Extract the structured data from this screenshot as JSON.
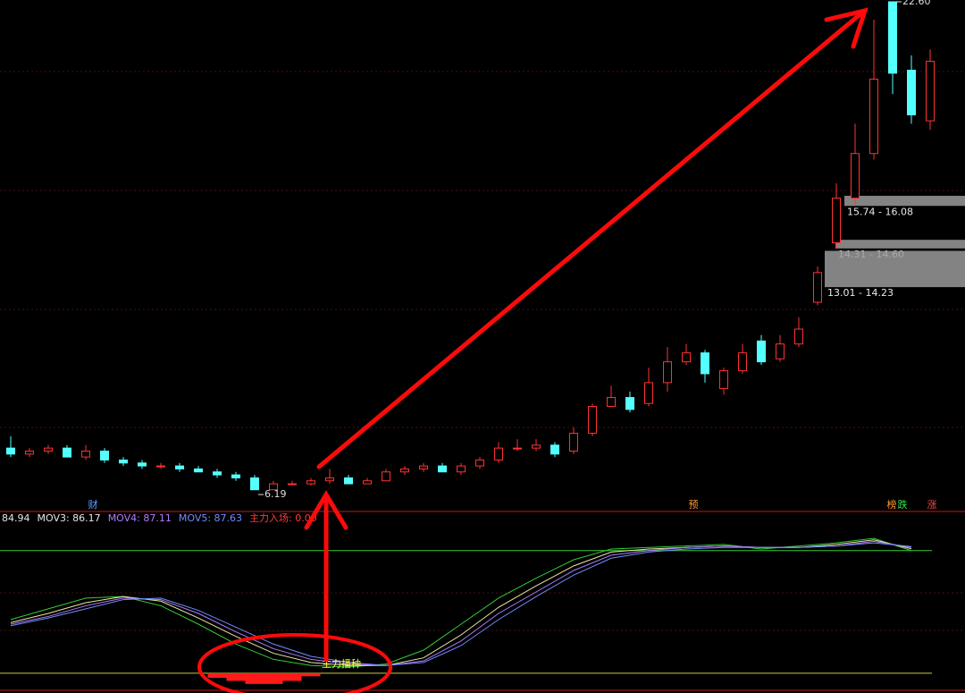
{
  "chart_data": [
    {
      "type": "candlestick",
      "up_color": "#ff3232",
      "down_color": "#54ffff",
      "open": [
        7.6,
        7.4,
        7.5,
        7.6,
        7.3,
        7.5,
        7.2,
        7.1,
        7.0,
        7.0,
        6.9,
        6.8,
        6.7,
        6.6,
        6.2,
        6.4,
        6.4,
        6.5,
        6.6,
        6.4,
        6.5,
        6.8,
        6.9,
        7.0,
        6.8,
        7.0,
        7.2,
        7.6,
        7.6,
        7.7,
        7.5,
        8.1,
        9.0,
        9.3,
        9.1,
        9.8,
        10.5,
        10.8,
        9.6,
        10.2,
        11.2,
        10.6,
        11.1,
        12.5,
        14.5,
        16.0,
        17.5,
        22.6,
        20.3,
        18.6
      ],
      "close": [
        7.4,
        7.5,
        7.6,
        7.3,
        7.5,
        7.2,
        7.1,
        7.0,
        7.0,
        6.9,
        6.8,
        6.7,
        6.6,
        6.2,
        6.4,
        6.4,
        6.5,
        6.6,
        6.4,
        6.5,
        6.8,
        6.9,
        7.0,
        6.8,
        7.0,
        7.2,
        7.6,
        7.6,
        7.7,
        7.4,
        8.1,
        9.0,
        9.3,
        8.9,
        9.8,
        10.5,
        10.8,
        10.1,
        10.2,
        10.8,
        10.5,
        11.1,
        11.6,
        13.5,
        16.0,
        17.5,
        20.0,
        20.2,
        18.8,
        20.6
      ],
      "high": [
        8.0,
        7.6,
        7.7,
        7.7,
        7.7,
        7.6,
        7.3,
        7.2,
        7.1,
        7.1,
        7.0,
        6.9,
        6.8,
        6.7,
        6.5,
        6.5,
        6.6,
        6.9,
        6.7,
        6.6,
        6.9,
        7.0,
        7.1,
        7.1,
        7.1,
        7.3,
        7.8,
        7.9,
        7.9,
        7.8,
        8.3,
        9.1,
        9.7,
        9.5,
        10.3,
        11.0,
        11.1,
        10.9,
        10.3,
        11.1,
        11.4,
        11.4,
        12.0,
        13.7,
        16.5,
        18.5,
        22.0,
        22.6,
        20.8,
        21.0
      ],
      "low": [
        7.3,
        7.3,
        7.4,
        7.3,
        7.2,
        7.1,
        7.0,
        6.9,
        6.9,
        6.8,
        6.8,
        6.6,
        6.5,
        6.19,
        6.2,
        6.35,
        6.35,
        6.4,
        6.4,
        6.4,
        6.5,
        6.7,
        6.8,
        6.8,
        6.7,
        6.9,
        7.1,
        7.5,
        7.5,
        7.3,
        7.4,
        8.0,
        9.0,
        8.8,
        9.0,
        9.5,
        10.4,
        9.8,
        9.4,
        10.1,
        10.4,
        10.5,
        11.0,
        12.4,
        14.3,
        15.8,
        17.3,
        19.5,
        18.5,
        18.3
      ],
      "ylim": [
        5.47,
        22.66
      ],
      "price_labels": [
        {
          "value": 22.6,
          "label": "22.60"
        },
        {
          "value": 6.19,
          "label": "6.19"
        }
      ],
      "zones": [
        {
          "low": 15.74,
          "high": 16.08,
          "label": "15.74 - 16.08"
        },
        {
          "low": 14.31,
          "high": 14.6,
          "label": "14.31 - 14.60"
        },
        {
          "low": 13.01,
          "high": 14.23,
          "label": "13.01 - 14.23"
        }
      ],
      "markers": [
        {
          "text": "财",
          "color": "#5aa0ff"
        },
        {
          "text": "预",
          "color": "#ff9a2e"
        },
        {
          "text": "榜",
          "color": "#ff9a2e"
        },
        {
          "text": "跌",
          "color": "#33dd55"
        },
        {
          "text": "涨",
          "color": "#ff4444"
        }
      ]
    },
    {
      "type": "line",
      "header": [
        {
          "text": "84.94",
          "color": "#e6e6e6"
        },
        {
          "text": "MOV3: 86.17",
          "color": "#e6e6e6"
        },
        {
          "text": "MOV4: 87.11",
          "color": "#b07cff"
        },
        {
          "text": "MOV5: 87.63",
          "color": "#6f8dff"
        },
        {
          "text": "主力入场: 0.00",
          "color": "#ff3a3a"
        }
      ],
      "x": [
        0,
        2,
        4,
        6,
        8,
        10,
        12,
        14,
        16,
        18,
        20,
        22,
        24,
        26,
        28,
        30,
        32,
        34,
        36,
        38,
        40,
        42,
        44,
        46,
        48
      ],
      "series": [
        {
          "color": "#33cc33",
          "values": [
            40,
            47,
            54,
            55,
            49,
            37,
            24,
            14,
            10,
            9,
            11,
            20,
            37,
            54,
            67,
            79,
            86,
            87,
            88,
            89,
            86,
            88,
            90,
            93,
            84.94
          ]
        },
        {
          "name": "MOV3",
          "color": "#e8e8a0",
          "values": [
            38,
            44,
            51,
            55,
            52,
            41,
            29,
            18,
            12,
            10,
            10,
            15,
            30,
            48,
            62,
            75,
            84,
            86,
            87,
            88,
            87,
            87,
            89,
            92,
            86.17
          ]
        },
        {
          "name": "MOV4",
          "color": "#b07cff",
          "values": [
            37,
            42,
            49,
            54,
            53,
            44,
            32,
            21,
            14,
            11,
            10,
            13,
            26,
            44,
            58,
            72,
            82,
            85,
            87,
            88,
            87,
            87,
            88,
            91,
            87.11
          ]
        },
        {
          "name": "MOV5",
          "color": "#6f8dff",
          "values": [
            36,
            41,
            47,
            53,
            54,
            46,
            35,
            24,
            16,
            12,
            10,
            12,
            23,
            40,
            55,
            69,
            80,
            84,
            86,
            87,
            87,
            87,
            88,
            90,
            87.63
          ]
        }
      ],
      "bars": {
        "name": "主力入场",
        "color": "#ff1a1a",
        "x": [
          11,
          12,
          13,
          14,
          15,
          16
        ],
        "values": [
          3,
          5,
          7,
          7,
          5,
          2
        ]
      },
      "levels": [
        {
          "value": 85,
          "color": "#33cc33"
        },
        {
          "value": 5,
          "color": "#c8c83a"
        }
      ],
      "ylim": [
        -5,
        100
      ],
      "annotation": "主力播种"
    }
  ]
}
